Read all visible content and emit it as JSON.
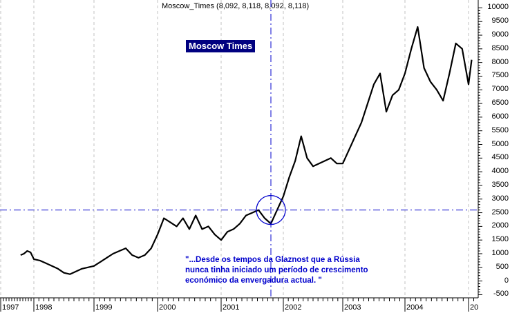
{
  "header": {
    "title": "Moscow_Times (8,092, 8,118, 8,092, 8,118)"
  },
  "badge": {
    "label": "Moscow Times"
  },
  "annotation": {
    "quote": "\"...Desde os tempos da Glaznost que a Rússia\nnunca tinha iniciado um período de crescimento\neconómico da envergadura actual. \"",
    "crosshair_level": 2600,
    "crosshair_date": "2001-10"
  },
  "colors": {
    "price": "#000000",
    "annotation": "#0000cc",
    "badge_bg": "#000080",
    "grid": "#c0c0c0"
  },
  "chart_data": {
    "type": "line",
    "title": "Moscow_Times (8,092, 8,118, 8,092, 8,118)",
    "xlabel": "",
    "ylabel": "",
    "ylim": [
      -500,
      10000
    ],
    "y_ticks": [
      10000,
      9500,
      9000,
      8500,
      8000,
      7500,
      7000,
      6500,
      6000,
      5500,
      5000,
      4500,
      4000,
      3500,
      3000,
      2500,
      2000,
      1500,
      1000,
      500,
      0,
      -500
    ],
    "x_ticks": [
      "1997",
      "1998",
      "1999",
      "2000",
      "2001",
      "2002",
      "2003",
      "2004",
      "20"
    ],
    "grid": "vertical dashed at year boundaries",
    "series": [
      {
        "name": "Moscow_Times",
        "x": [
          1997.6,
          1997.7,
          1997.8,
          1997.9,
          1998.0,
          1998.1,
          1998.2,
          1998.3,
          1998.4,
          1998.5,
          1998.6,
          1998.7,
          1998.8,
          1998.9,
          1999.0,
          1999.1,
          1999.2,
          1999.3,
          1999.4,
          1999.5,
          1999.6,
          1999.7,
          1999.8,
          1999.9,
          2000.0,
          2000.1,
          2000.2,
          2000.3,
          2000.4,
          2000.5,
          2000.6,
          2000.7,
          2000.8,
          2000.9,
          2001.0,
          2001.1,
          2001.2,
          2001.3,
          2001.4,
          2001.5,
          2001.6,
          2001.7,
          2001.8,
          2001.9,
          2002.0,
          2002.1,
          2002.2,
          2002.3,
          2002.4,
          2002.5,
          2002.6,
          2002.7,
          2002.8,
          2002.9,
          2003.0,
          2003.1,
          2003.2,
          2003.3,
          2003.4,
          2003.5,
          2003.6,
          2003.7,
          2003.8,
          2003.9,
          2004.0,
          2004.1,
          2004.2,
          2004.3,
          2004.4,
          2004.5,
          2004.6,
          2004.7,
          2004.8,
          2004.9,
          2005.0,
          2005.05
        ],
        "values": [
          950,
          1000,
          1100,
          1050,
          800,
          750,
          650,
          550,
          450,
          300,
          250,
          350,
          450,
          500,
          550,
          700,
          850,
          1000,
          1100,
          1200,
          950,
          850,
          950,
          1200,
          1700,
          2300,
          2150,
          2000,
          2300,
          1900,
          2400,
          1900,
          2000,
          1700,
          1500,
          1800,
          1900,
          2100,
          2400,
          2500,
          2600,
          2300,
          2100,
          2600,
          3100,
          3800,
          4400,
          5300,
          4500,
          4200,
          4300,
          4400,
          4500,
          4300,
          4300,
          4800,
          5300,
          5800,
          6500,
          7200,
          7600,
          6200,
          6800,
          7000,
          7600,
          8500,
          9300,
          7800,
          7300,
          7000,
          6600,
          7600,
          8700,
          8500,
          7200,
          8100
        ]
      }
    ],
    "reference_lines": {
      "horizontal": 2600,
      "vertical_x": 2001.8
    }
  },
  "axes": {
    "y_labels": [
      "10000",
      "9500",
      "9000",
      "8500",
      "8000",
      "7500",
      "7000",
      "6500",
      "6000",
      "5500",
      "5000",
      "4500",
      "4000",
      "3500",
      "3000",
      "2500",
      "2000",
      "1500",
      "1000",
      "500",
      "0",
      "-500"
    ],
    "x_labels": [
      "1997",
      "1998",
      "1999",
      "2000",
      "2001",
      "2002",
      "2003",
      "2004",
      "20"
    ]
  }
}
